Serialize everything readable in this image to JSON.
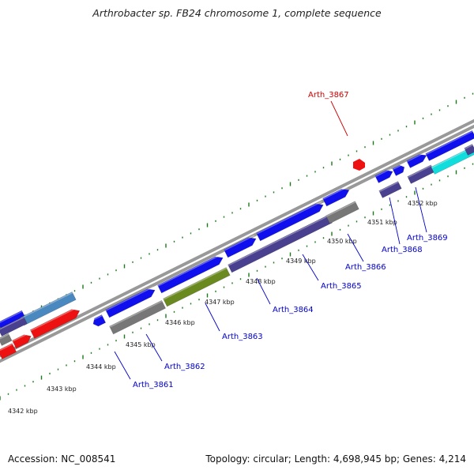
{
  "title": "Arthrobacter sp. FB24 chromosome 1, complete sequence",
  "footer": {
    "accession": "Accession: NC_008541",
    "topology": "Topology: circular; Length: 4,698,945 bp; Genes: 4,214"
  },
  "colors": {
    "blue": "#1010ee",
    "slate": "#4a4090",
    "grey": "#777777",
    "red": "#ee1111",
    "olive": "#6a8a20",
    "cyan": "#11dddd",
    "steel": "#4a88c0",
    "tick": "#1a7a1a",
    "label_blue": "#0000cc",
    "label_red": "#cc0000"
  },
  "kbp_labels": [
    "4342 kbp",
    "4343 kbp",
    "4344 kbp",
    "4345 kbp",
    "4346 kbp",
    "4347 kbp",
    "4348 kbp",
    "4349 kbp",
    "4350 kbp",
    "4351 kbp",
    "4352 kbp"
  ],
  "gene_labels": [
    "Arth_3861",
    "Arth_3862",
    "Arth_3863",
    "Arth_3864",
    "Arth_3865",
    "Arth_3866",
    "Arth_3867",
    "Arth_3868",
    "Arth_3869"
  ]
}
